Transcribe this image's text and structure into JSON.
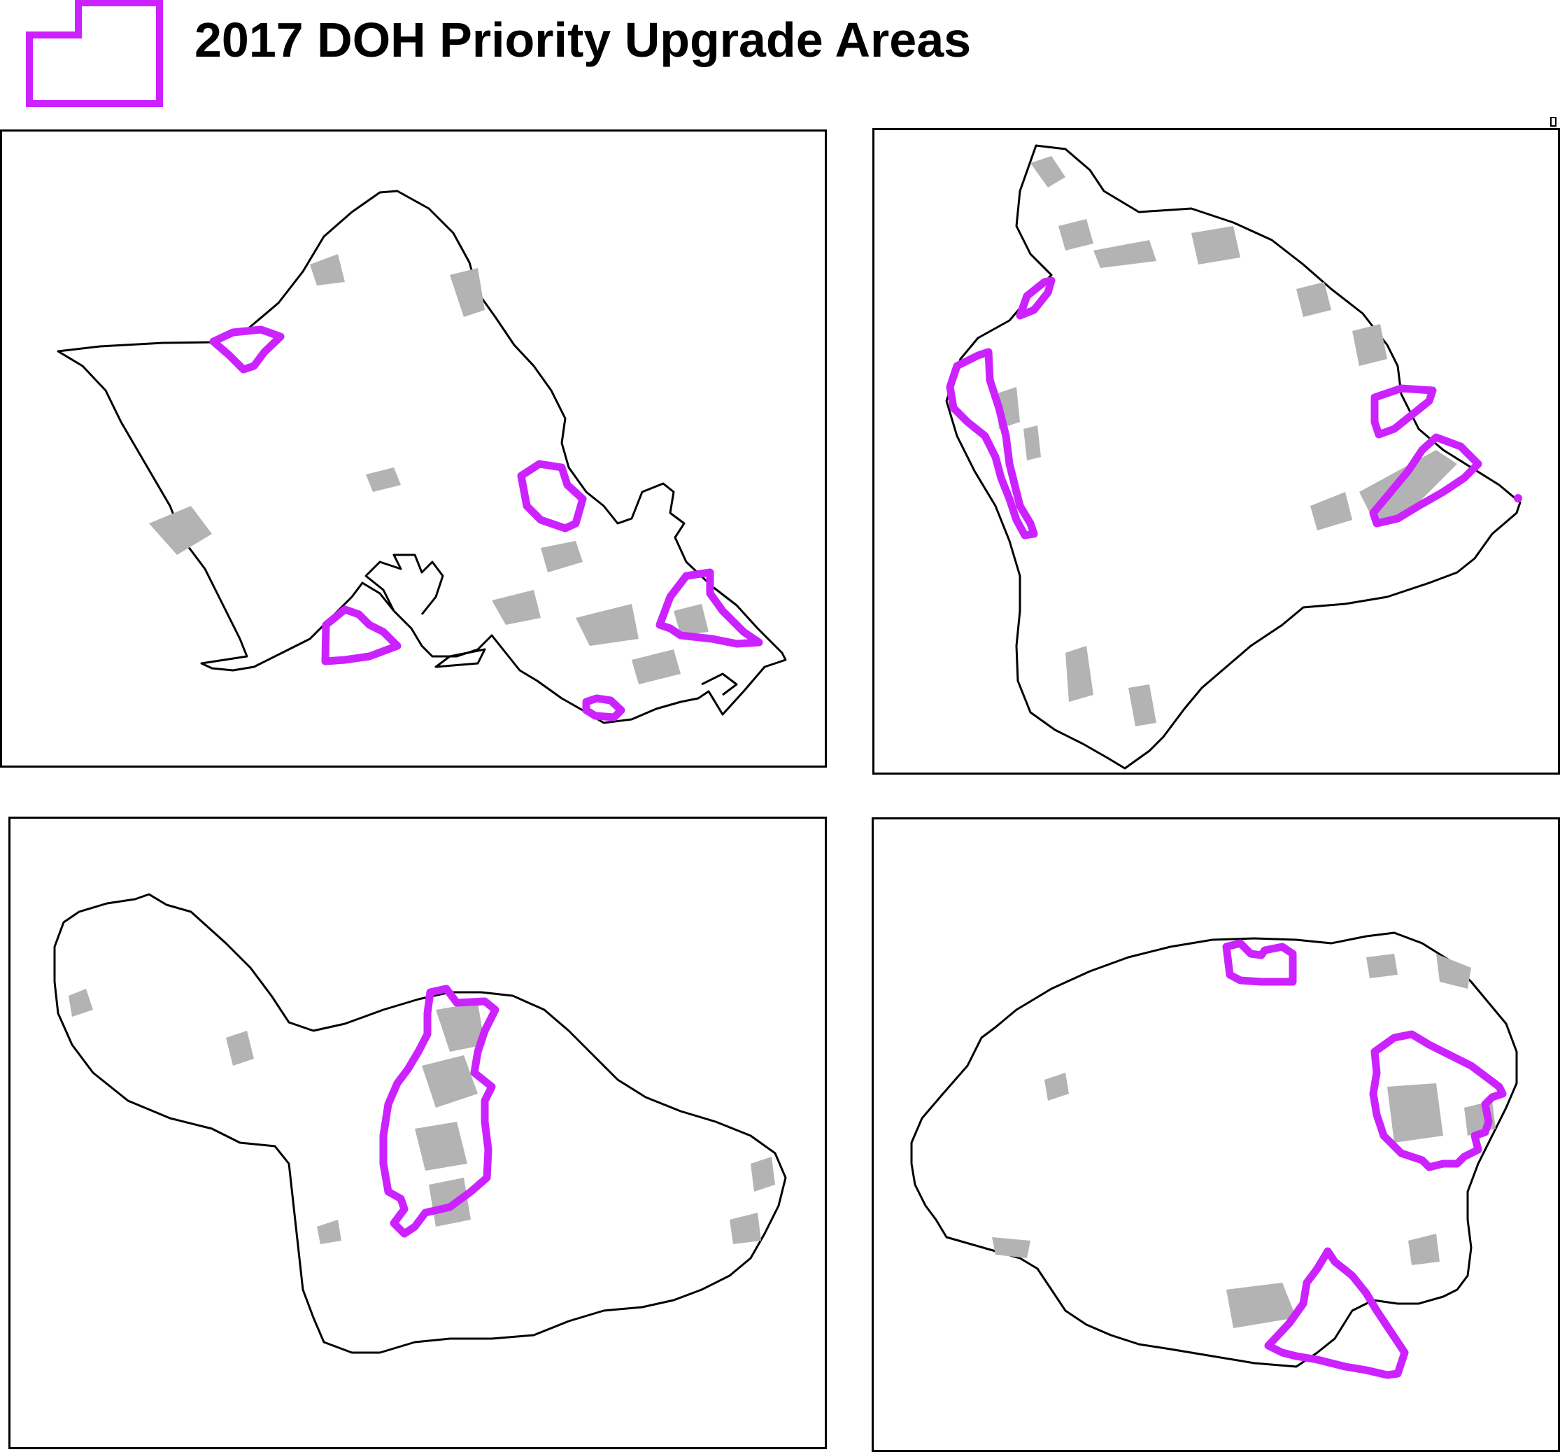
{
  "legend": {
    "title": "2017 DOH Priority Upgrade Areas",
    "icon": "priority-area-polygon-icon",
    "color": "#cc22ff"
  },
  "style": {
    "coastline_color": "#000000",
    "developed_land_color": "#b3b3b3",
    "land_color": "#ffffff"
  },
  "panels": [
    {
      "island": "Oahu",
      "priority_areas": 5
    },
    {
      "island": "Hawaii",
      "priority_areas": 5
    },
    {
      "island": "Maui",
      "priority_areas": 1
    },
    {
      "island": "Kauai",
      "priority_areas": 3
    }
  ]
}
